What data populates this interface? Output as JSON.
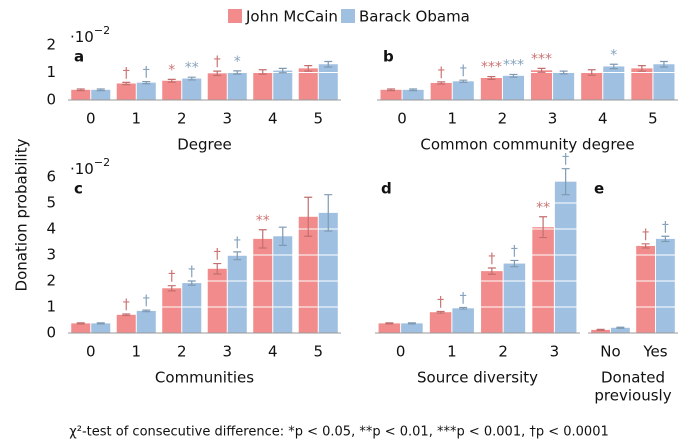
{
  "legend_title": null,
  "y_label": "Donation probability",
  "footnote": "χ²-test of consecutive difference: *p < 0.05, **p < 0.01, ***p < 0.001, †p < 0.0001",
  "chart_data": [
    {
      "type": "bar",
      "panel": "a",
      "x_label": [
        "Degree"
      ],
      "y_multiplier": {
        "base": "·10",
        "exponent": "−2"
      },
      "categories": [
        "0",
        "1",
        "2",
        "3",
        "4",
        "5"
      ],
      "ylim": [
        0,
        2
      ],
      "yticks": [
        0,
        1,
        2
      ],
      "tick_labels": true,
      "series": [
        {
          "name": "John McCain",
          "color": "#f28b8b",
          "values": [
            0.37,
            0.6,
            0.7,
            0.97,
            1.02,
            1.15
          ],
          "errors": [
            0.03,
            0.04,
            0.05,
            0.08,
            0.08,
            0.1
          ],
          "annotations": [
            null,
            "†",
            "*",
            "†",
            null,
            null
          ]
        },
        {
          "name": "Barack Obama",
          "color": "#9fc0e0",
          "values": [
            0.37,
            0.63,
            0.78,
            1.0,
            1.07,
            1.3
          ],
          "errors": [
            0.03,
            0.04,
            0.05,
            0.06,
            0.08,
            0.1
          ],
          "annotations": [
            null,
            "†",
            "**",
            "*",
            null,
            null
          ]
        }
      ]
    },
    {
      "type": "bar",
      "panel": "b",
      "x_label": [
        "Common community degree"
      ],
      "categories": [
        "0",
        "1",
        "2",
        "3",
        "4",
        "5"
      ],
      "ylim": [
        0,
        2
      ],
      "yticks": [
        0,
        1,
        2
      ],
      "tick_labels": false,
      "series": [
        {
          "name": "John McCain",
          "color": "#f28b8b",
          "values": [
            0.37,
            0.62,
            0.8,
            1.08,
            1.0,
            1.15
          ],
          "errors": [
            0.03,
            0.04,
            0.05,
            0.07,
            0.1,
            0.1
          ],
          "annotations": [
            null,
            "†",
            "***",
            "***",
            null,
            null
          ]
        },
        {
          "name": "Barack Obama",
          "color": "#9fc0e0",
          "values": [
            0.37,
            0.68,
            0.88,
            1.0,
            1.22,
            1.3
          ],
          "errors": [
            0.03,
            0.04,
            0.05,
            0.05,
            0.08,
            0.1
          ],
          "annotations": [
            null,
            "†",
            "***",
            null,
            "*",
            null
          ]
        }
      ]
    },
    {
      "type": "bar",
      "panel": "c",
      "x_label": [
        "Communities"
      ],
      "y_multiplier": {
        "base": "·10",
        "exponent": "−2"
      },
      "categories": [
        "0",
        "1",
        "2",
        "3",
        "4",
        "5"
      ],
      "ylim": [
        0,
        6
      ],
      "yticks": [
        0,
        1,
        2,
        3,
        4,
        5,
        6
      ],
      "tick_labels": true,
      "series": [
        {
          "name": "John McCain",
          "color": "#f28b8b",
          "values": [
            0.37,
            0.7,
            1.72,
            2.47,
            3.62,
            4.47
          ],
          "errors": [
            0.02,
            0.03,
            0.1,
            0.2,
            0.35,
            0.75
          ],
          "annotations": [
            null,
            "†",
            "†",
            "†",
            "**",
            null
          ]
        },
        {
          "name": "Barack Obama",
          "color": "#9fc0e0",
          "values": [
            0.37,
            0.85,
            1.92,
            2.97,
            3.72,
            4.62
          ],
          "errors": [
            0.02,
            0.03,
            0.08,
            0.15,
            0.35,
            0.7
          ],
          "annotations": [
            null,
            "†",
            "†",
            "†",
            null,
            null
          ]
        }
      ]
    },
    {
      "type": "bar",
      "panel": "d",
      "x_label": [
        "Source diversity"
      ],
      "categories": [
        "0",
        "1",
        "2",
        "3"
      ],
      "ylim": [
        0,
        6
      ],
      "yticks": [
        0,
        1,
        2,
        3,
        4,
        5,
        6
      ],
      "tick_labels": false,
      "series": [
        {
          "name": "John McCain",
          "color": "#f28b8b",
          "values": [
            0.37,
            0.8,
            2.38,
            4.07
          ],
          "errors": [
            0.02,
            0.03,
            0.12,
            0.4
          ],
          "annotations": [
            null,
            "†",
            "†",
            "**"
          ]
        },
        {
          "name": "Barack Obama",
          "color": "#9fc0e0",
          "values": [
            0.37,
            0.95,
            2.67,
            5.82
          ],
          "errors": [
            0.02,
            0.03,
            0.12,
            0.5
          ],
          "annotations": [
            null,
            "†",
            "†",
            "†"
          ]
        }
      ]
    },
    {
      "type": "bar",
      "panel": "e",
      "x_label": [
        "Donated",
        "previously"
      ],
      "categories": [
        "No",
        "Yes"
      ],
      "ylim": [
        0,
        6
      ],
      "yticks": [
        0,
        1,
        2,
        3,
        4,
        5,
        6
      ],
      "tick_labels": false,
      "series": [
        {
          "name": "John McCain",
          "color": "#f28b8b",
          "values": [
            0.12,
            3.35
          ],
          "errors": [
            0.02,
            0.08
          ],
          "annotations": [
            null,
            "†"
          ]
        },
        {
          "name": "Barack Obama",
          "color": "#9fc0e0",
          "values": [
            0.2,
            3.62
          ],
          "errors": [
            0.02,
            0.1
          ],
          "annotations": [
            null,
            "†"
          ]
        }
      ]
    }
  ]
}
